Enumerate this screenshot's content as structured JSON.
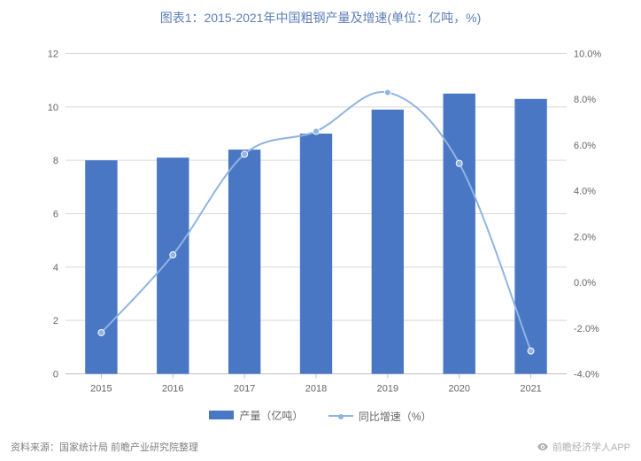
{
  "title": "图表1：2015-2021年中国粗钢产量及增速(单位：亿吨，%)",
  "title_color": "#5b7fb8",
  "title_fontsize": 14,
  "source_label": "资料来源：国家统计局 前瞻产业研究院整理",
  "watermark_text": "前瞻经济学人APP",
  "watermark_color": "#b0b0b0",
  "source_color": "#808080",
  "footer_fontsize": 11,
  "chart": {
    "type": "bar+line",
    "background": "#ffffff",
    "grid_color": "#d9d9d9",
    "axis_color": "#c0c0c0",
    "tick_fontsize": 11,
    "tick_color": "#666666",
    "categories": [
      "2015",
      "2016",
      "2017",
      "2018",
      "2019",
      "2020",
      "2021"
    ],
    "bar": {
      "label": "产量（亿吨）",
      "values": [
        8.0,
        8.1,
        8.4,
        9.0,
        9.9,
        10.5,
        10.3
      ],
      "color": "#4a77c4",
      "width_ratio": 0.45,
      "y_axis": {
        "min": 0,
        "max": 12,
        "step": 2,
        "side": "left"
      }
    },
    "line": {
      "label": "同比增速（%）",
      "values": [
        -2.2,
        1.2,
        5.6,
        6.6,
        8.3,
        5.2,
        -3.0
      ],
      "color": "#8fb4e3",
      "line_width": 2,
      "marker": "circle",
      "marker_size": 3.5,
      "curve": "smooth",
      "y_axis": {
        "min": -4.0,
        "max": 10.0,
        "step": 2.0,
        "suffix": "%",
        "side": "right",
        "decimals": 1
      }
    }
  },
  "legend": {
    "fontsize": 12,
    "color": "#666666"
  }
}
